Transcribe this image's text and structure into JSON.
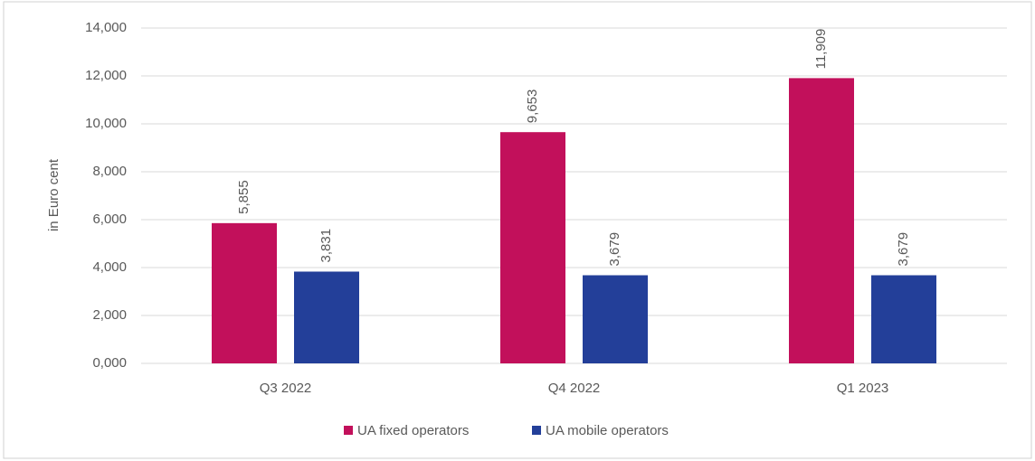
{
  "chart_data": {
    "type": "bar",
    "y_label": "in Euro cent",
    "categories": [
      "Q3 2022",
      "Q4 2022",
      "Q1 2023"
    ],
    "series": [
      {
        "name": "UA fixed operators",
        "color": "#c2105b",
        "values": [
          5855,
          9653,
          11909
        ],
        "value_labels": [
          "5,855",
          "9,653",
          "11,909"
        ]
      },
      {
        "name": "UA mobile operators",
        "color": "#233f99",
        "values": [
          3831,
          3679,
          3679
        ],
        "value_labels": [
          "3,831",
          "3,679",
          "3,679"
        ]
      }
    ],
    "ylim": [
      0,
      14000
    ],
    "yticks": [
      {
        "value": 0,
        "label": "0,000"
      },
      {
        "value": 2000,
        "label": "2,000"
      },
      {
        "value": 4000,
        "label": "4,000"
      },
      {
        "value": 6000,
        "label": "6,000"
      },
      {
        "value": 8000,
        "label": "8,000"
      },
      {
        "value": 10000,
        "label": "10,000"
      },
      {
        "value": 12000,
        "label": "12,000"
      },
      {
        "value": 14000,
        "label": "14,000"
      }
    ],
    "grid": true,
    "legend": "bottom"
  }
}
